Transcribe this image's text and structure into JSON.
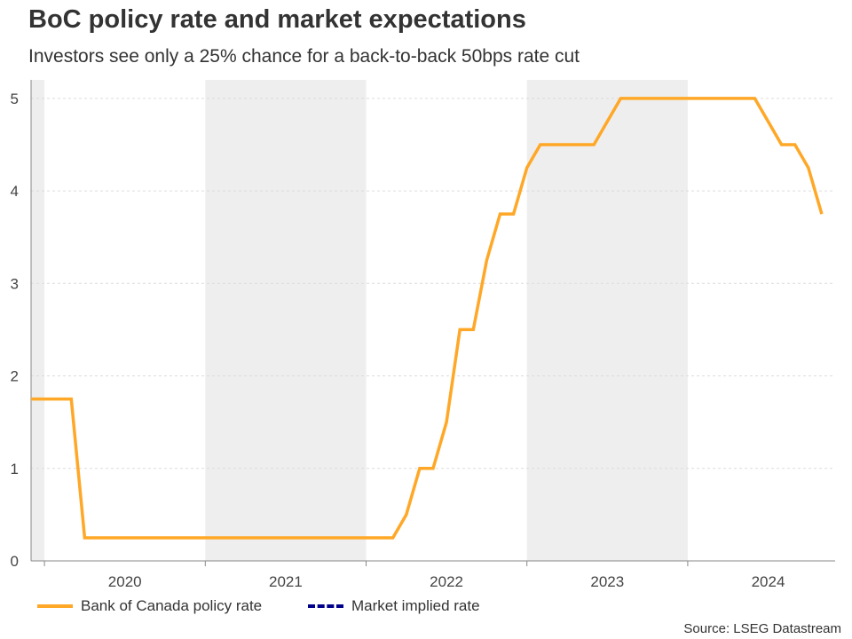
{
  "title": "BoC policy rate and market expectations",
  "subtitle": "Investors see only a 25% chance for a back-to-back 50bps rate cut",
  "source": "Source: LSEG Datastream",
  "chart_data": {
    "type": "line",
    "title": "BoC policy rate and market expectations",
    "xlabel": "",
    "ylabel": "",
    "xlim": [
      "2019-12",
      "2024-12"
    ],
    "ylim": [
      0,
      5.2
    ],
    "yticks": [
      "0",
      "1",
      "2",
      "3",
      "4",
      "5"
    ],
    "xticks": [
      "2020",
      "2021",
      "2022",
      "2023",
      "2024"
    ],
    "grid": true,
    "shaded_years": [
      "2019",
      "2021",
      "2023"
    ],
    "legend_placement": "bottom-left",
    "series": [
      {
        "name": "Bank of Canada policy rate",
        "color": "#FFA726",
        "style": "solid",
        "x": [
          "2019-12",
          "2020-03",
          "2020-04",
          "2022-03",
          "2022-04",
          "2022-05",
          "2022-06",
          "2022-07",
          "2022-08",
          "2022-09",
          "2022-10",
          "2022-11",
          "2022-12",
          "2023-01",
          "2023-02",
          "2023-06",
          "2023-07",
          "2023-08",
          "2024-06",
          "2024-07",
          "2024-08",
          "2024-09",
          "2024-10",
          "2024-11"
        ],
        "values": [
          1.75,
          1.75,
          0.25,
          0.25,
          0.5,
          1.0,
          1.0,
          1.5,
          2.5,
          2.5,
          3.25,
          3.75,
          3.75,
          4.25,
          4.5,
          4.5,
          4.75,
          5.0,
          5.0,
          4.75,
          4.5,
          4.5,
          4.25,
          3.75
        ]
      },
      {
        "name": "Market implied rate",
        "color": "#00008B",
        "style": "dashed",
        "x": [],
        "values": []
      }
    ]
  }
}
